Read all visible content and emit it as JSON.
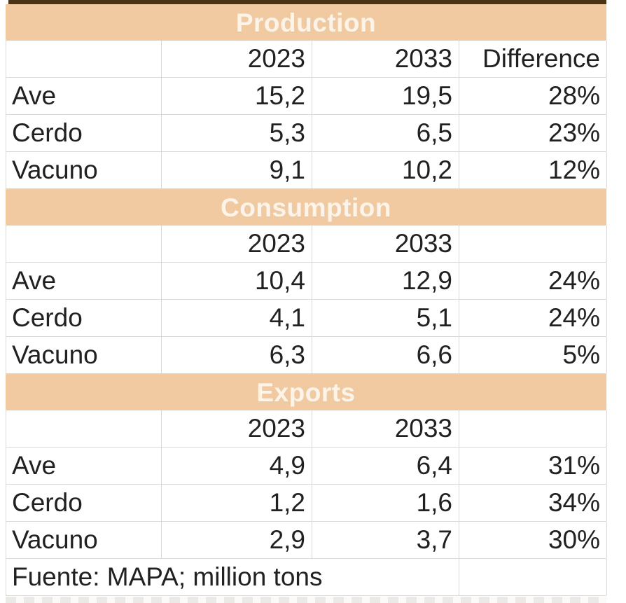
{
  "colors": {
    "section_band": "#f1caa2",
    "section_band_text": "#fcf4e8",
    "top_strip": "#4a3315",
    "gridline": "#d9d9d9",
    "text": "#212121"
  },
  "table": {
    "sections": [
      {
        "title": "Production",
        "col_headers": [
          "",
          "2023",
          "2033",
          "Difference"
        ],
        "rows": [
          {
            "label": "Ave",
            "y2023": "15,2",
            "y2033": "19,5",
            "diff": "28%"
          },
          {
            "label": "Cerdo",
            "y2023": "5,3",
            "y2033": "6,5",
            "diff": "23%"
          },
          {
            "label": "Vacuno",
            "y2023": "9,1",
            "y2033": "10,2",
            "diff": "12%"
          }
        ]
      },
      {
        "title": "Consumption",
        "col_headers": [
          "",
          "2023",
          "2033",
          ""
        ],
        "rows": [
          {
            "label": "Ave",
            "y2023": "10,4",
            "y2033": "12,9",
            "diff": "24%"
          },
          {
            "label": "Cerdo",
            "y2023": "4,1",
            "y2033": "5,1",
            "diff": "24%"
          },
          {
            "label": "Vacuno",
            "y2023": "6,3",
            "y2033": "6,6",
            "diff": "5%"
          }
        ]
      },
      {
        "title": "Exports",
        "col_headers": [
          "",
          "2023",
          "2033",
          ""
        ],
        "rows": [
          {
            "label": "Ave",
            "y2023": "4,9",
            "y2033": "6,4",
            "diff": "31%"
          },
          {
            "label": "Cerdo",
            "y2023": "1,2",
            "y2033": "1,6",
            "diff": "34%"
          },
          {
            "label": "Vacuno",
            "y2023": "2,9",
            "y2033": "3,7",
            "diff": "30%"
          }
        ]
      }
    ],
    "footer": {
      "source_note": "Fuente: MAPA; million tons"
    }
  }
}
